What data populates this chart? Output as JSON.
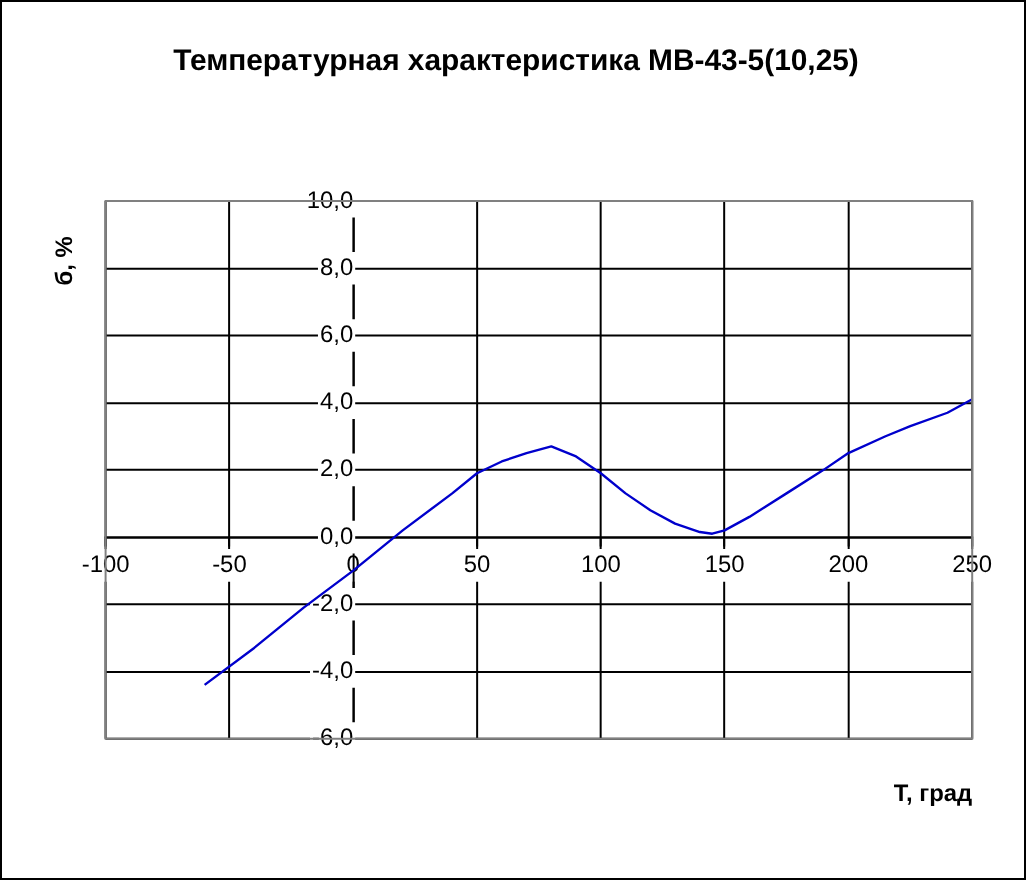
{
  "chart_data": {
    "type": "line",
    "title": "Температурная характеристика МВ-43-5(10,25)",
    "xlabel": "Т, град",
    "ylabel": "б, %",
    "x": [
      -60,
      -40,
      -20,
      0,
      20,
      40,
      50,
      60,
      70,
      80,
      90,
      100,
      110,
      120,
      130,
      140,
      145,
      150,
      160,
      175,
      190,
      200,
      215,
      225,
      240,
      250
    ],
    "series": [
      {
        "color": "#0000cc",
        "values": [
          -4.4,
          -3.3,
          -2.1,
          -1.0,
          0.2,
          1.3,
          1.9,
          2.25,
          2.5,
          2.7,
          2.4,
          1.9,
          1.3,
          0.8,
          0.4,
          0.15,
          0.1,
          0.2,
          0.6,
          1.3,
          2.0,
          2.5,
          3.0,
          3.3,
          3.7,
          4.1
        ]
      }
    ],
    "xlim": [
      -100,
      250
    ],
    "xticks": [
      -100,
      -50,
      0,
      50,
      100,
      150,
      200,
      250
    ],
    "ylim": [
      -6,
      10
    ],
    "yticks": [
      {
        "value": -6,
        "label": "-6,0"
      },
      {
        "value": -4,
        "label": "-4,0"
      },
      {
        "value": -2,
        "label": "-2,0"
      },
      {
        "value": 0,
        "label": "0,0"
      },
      {
        "value": 2,
        "label": "2,0"
      },
      {
        "value": 4,
        "label": "4,0"
      },
      {
        "value": 6,
        "label": "6,0"
      },
      {
        "value": 8,
        "label": "8,0"
      },
      {
        "value": 10,
        "label": "10,0"
      }
    ],
    "grid": true,
    "legend": false,
    "marker": "none",
    "line_style": "solid"
  }
}
